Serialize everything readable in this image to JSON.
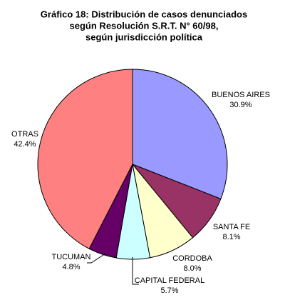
{
  "chart_data": {
    "type": "pie",
    "title": [
      "Gráfico 18: Distribución de casos denunciados",
      "según Resolución S.R.T. N° 60/98,",
      "según jurisdicción política"
    ],
    "categories": [
      "BUENOS AIRES",
      "SANTA FE",
      "CORDOBA",
      "CAPITAL FEDERAL",
      "TUCUMAN",
      "OTRAS"
    ],
    "values": [
      30.9,
      8.1,
      8.0,
      5.7,
      4.8,
      42.4
    ],
    "value_labels": [
      "30.9%",
      "8.1%",
      "8.0%",
      "5.7%",
      "4.8%",
      "42.4%"
    ],
    "colors": [
      "#9999ff",
      "#993366",
      "#ffffcc",
      "#ccffff",
      "#660066",
      "#ff8080"
    ]
  }
}
